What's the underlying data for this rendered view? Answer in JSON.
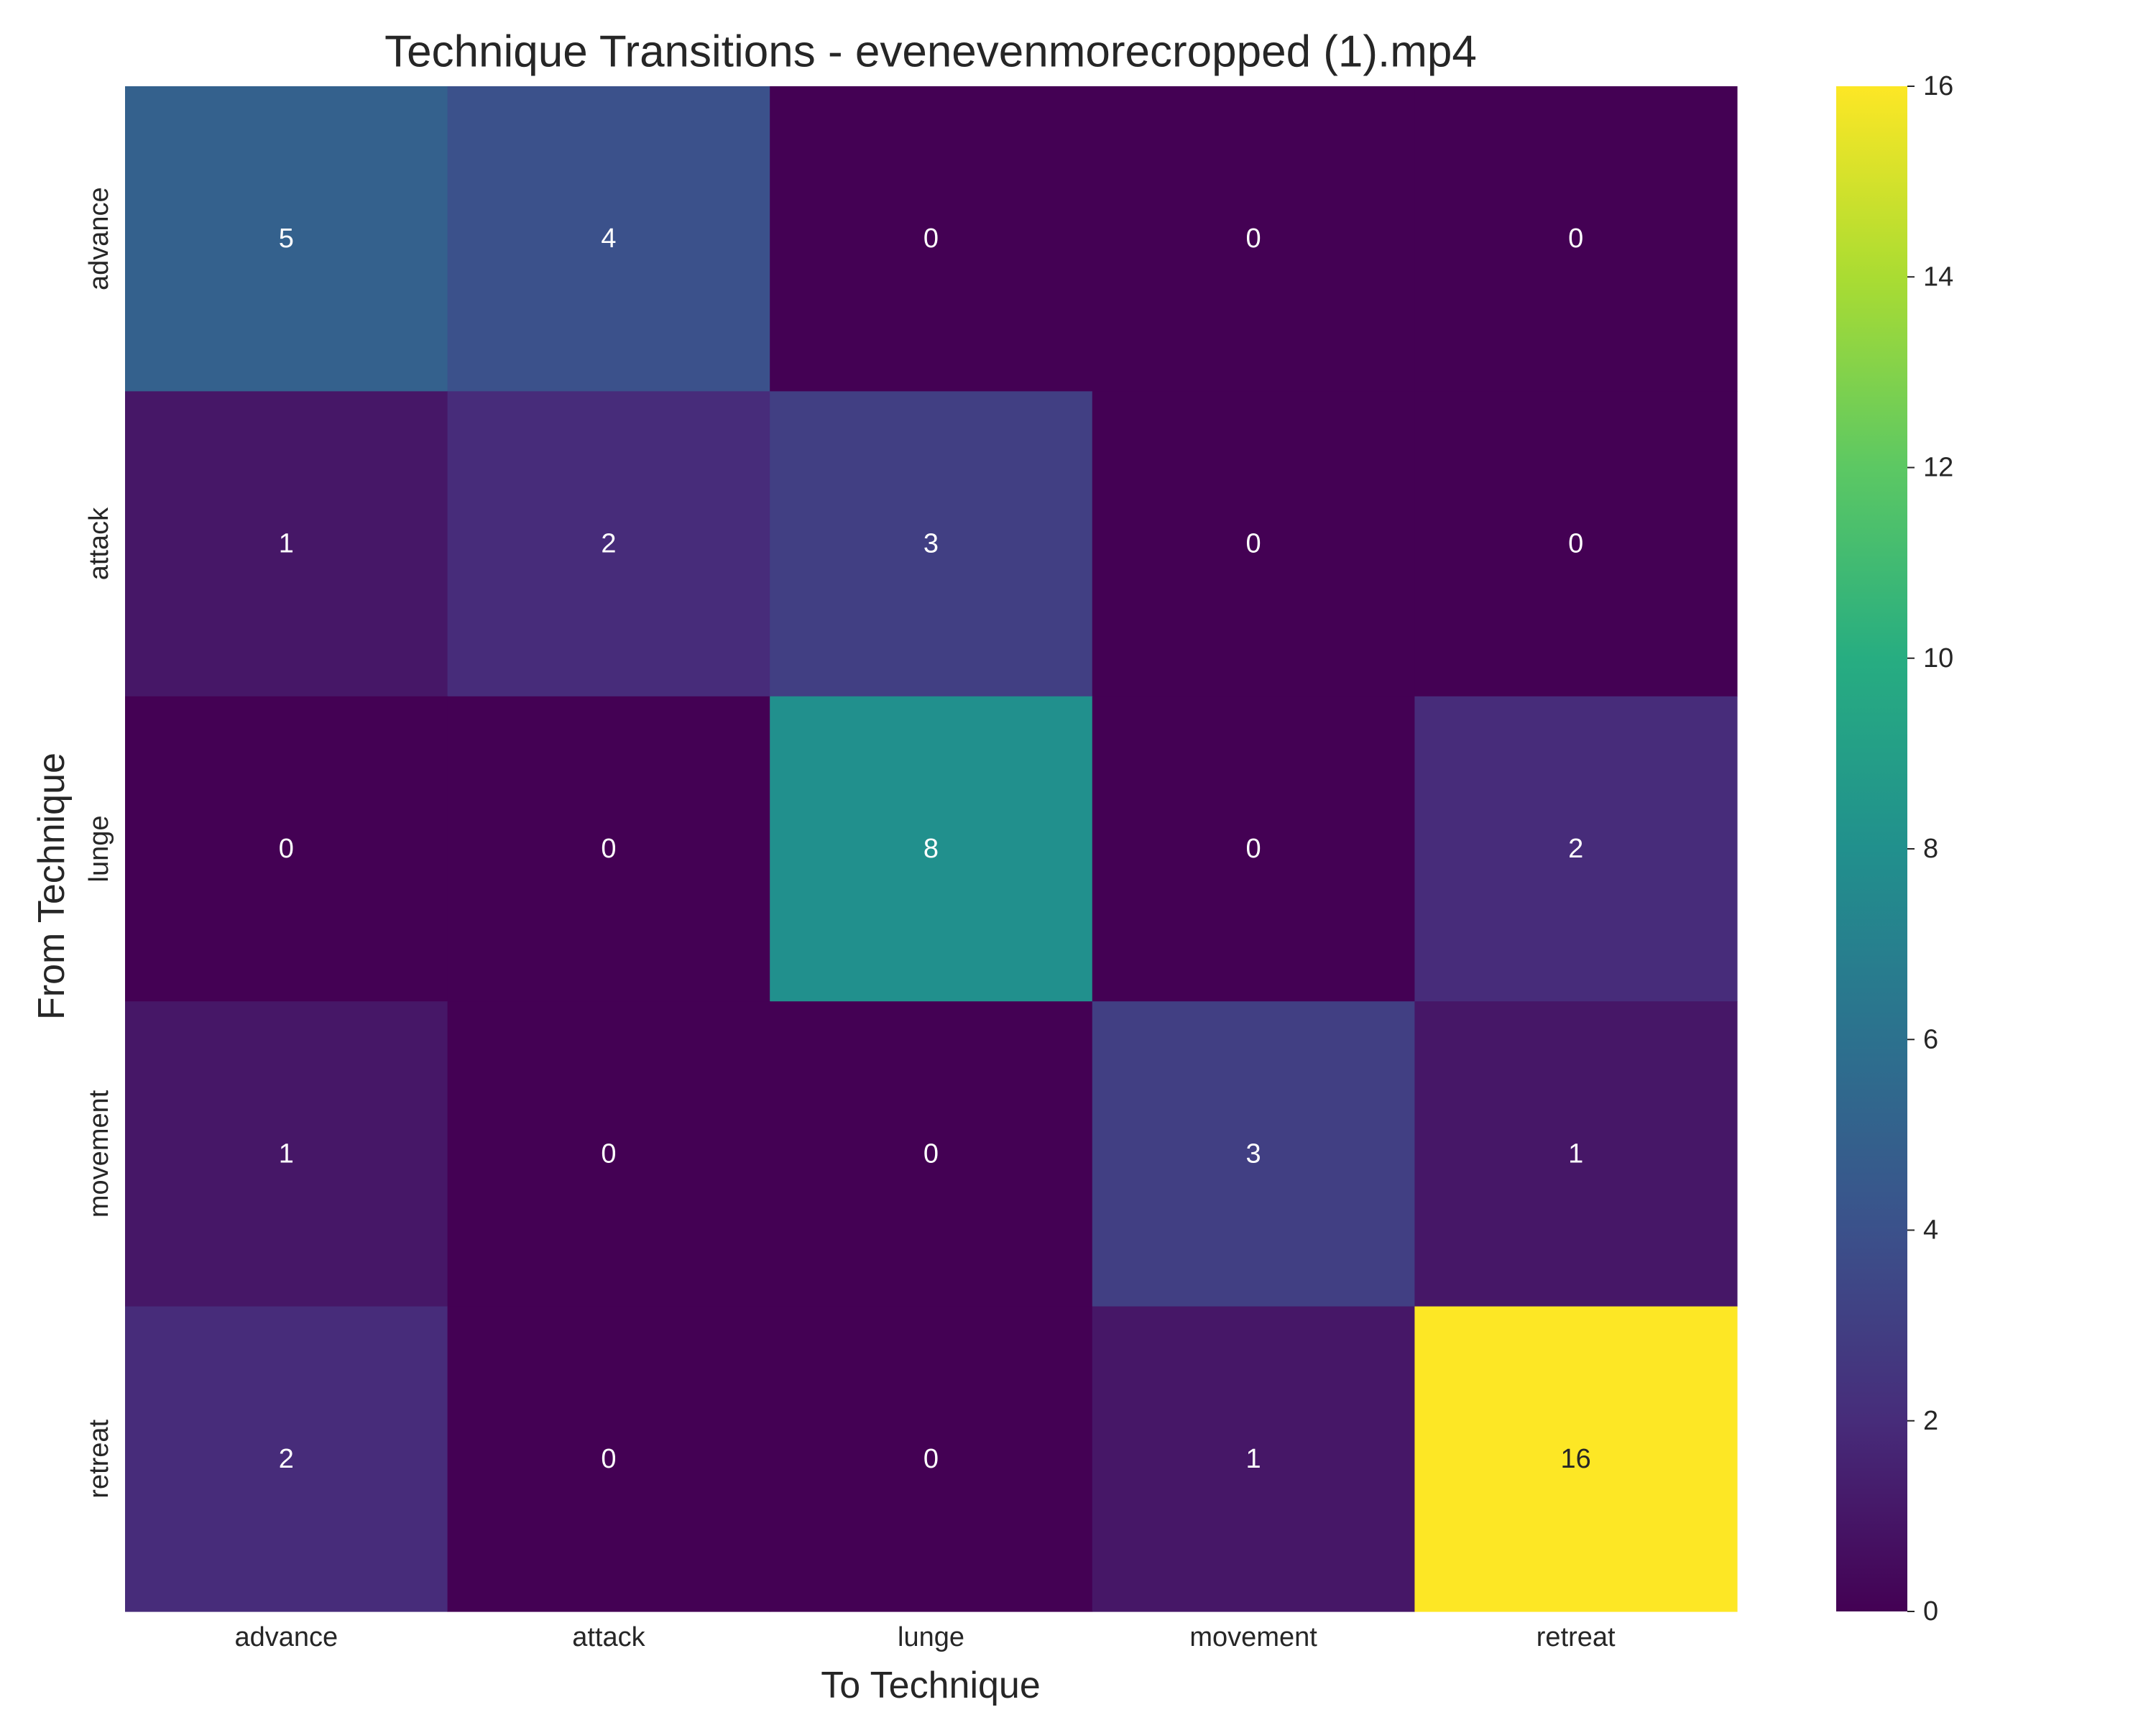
{
  "chart_data": {
    "type": "heatmap",
    "title": "Technique Transitions - evenevenmorecropped (1).mp4",
    "xlabel": "To Technique",
    "ylabel": "From Technique",
    "x_categories": [
      "advance",
      "attack",
      "lunge",
      "movement",
      "retreat"
    ],
    "y_categories": [
      "advance",
      "attack",
      "lunge",
      "movement",
      "retreat"
    ],
    "values": [
      [
        5,
        4,
        0,
        0,
        0
      ],
      [
        1,
        2,
        3,
        0,
        0
      ],
      [
        0,
        0,
        8,
        0,
        2
      ],
      [
        1,
        0,
        0,
        3,
        1
      ],
      [
        2,
        0,
        0,
        1,
        16
      ]
    ],
    "colorbar": {
      "min": 0,
      "max": 16,
      "ticks": [
        "0",
        "2",
        "4",
        "6",
        "8",
        "10",
        "12",
        "14",
        "16"
      ],
      "colormap": "viridis"
    },
    "annotate": true,
    "grid": false,
    "legend": "none"
  }
}
